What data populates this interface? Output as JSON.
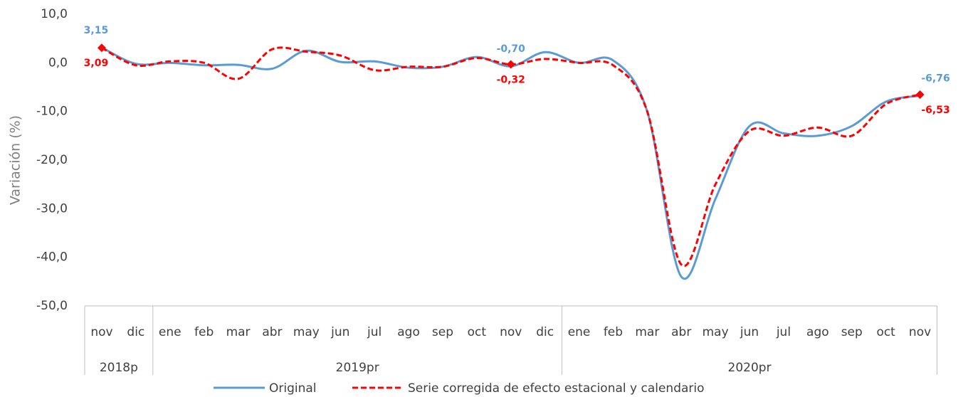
{
  "chart_data": {
    "type": "line",
    "y_label": "Variación (%)",
    "categories": [
      "nov",
      "dic",
      "ene",
      "feb",
      "mar",
      "abr",
      "may",
      "jun",
      "jul",
      "ago",
      "sep",
      "oct",
      "nov",
      "dic",
      "ene",
      "feb",
      "mar",
      "abr",
      "may",
      "jun",
      "jul",
      "ago",
      "sep",
      "oct",
      "nov"
    ],
    "groups": [
      {
        "name": "2018p",
        "count": 2
      },
      {
        "name": "2019pr",
        "count": 12
      },
      {
        "name": "2020pr",
        "count": 11
      }
    ],
    "series": [
      {
        "name": "Original",
        "color": "#5b9bd5",
        "dash": false,
        "values": [
          3.15,
          -0.2,
          0.0,
          -0.5,
          -0.4,
          -1.2,
          2.5,
          0.2,
          0.3,
          -1.0,
          -0.8,
          1.2,
          -0.7,
          2.2,
          0.0,
          0.5,
          -10,
          -44,
          -28,
          -13,
          -14.5,
          -15,
          -13,
          -8,
          -6.76
        ],
        "value_labels": [
          "3,15",
          null,
          null,
          null,
          null,
          null,
          null,
          null,
          null,
          null,
          null,
          null,
          "-0,70",
          null,
          null,
          null,
          null,
          null,
          null,
          null,
          null,
          null,
          null,
          null,
          "-6,76"
        ]
      },
      {
        "name": "Serie corregida de efecto estacional y calendario",
        "color": "#ff0000",
        "dash": true,
        "values": [
          3.09,
          -0.5,
          0.3,
          0.0,
          -3.3,
          2.8,
          2.3,
          1.5,
          -1.5,
          -0.8,
          -0.8,
          1.0,
          -0.32,
          0.8,
          0.0,
          -0.5,
          -10,
          -41.5,
          -25,
          -14,
          -15,
          -13.3,
          -15,
          -8.5,
          -6.53
        ],
        "value_labels": [
          "3,09",
          null,
          null,
          null,
          null,
          null,
          null,
          null,
          null,
          null,
          null,
          null,
          "-0,32",
          null,
          null,
          null,
          null,
          null,
          null,
          null,
          null,
          null,
          null,
          null,
          "-6,53"
        ]
      }
    ],
    "ylim": [
      -50,
      10
    ],
    "yticks": [
      {
        "value": -50,
        "label": "-50,0"
      },
      {
        "value": -40,
        "label": "-40,0"
      },
      {
        "value": -30,
        "label": "-30,0"
      },
      {
        "value": -20,
        "label": "-20,0"
      },
      {
        "value": -10,
        "label": "-10,0"
      },
      {
        "value": 0,
        "label": "0,0"
      },
      {
        "value": 10,
        "label": "10,0"
      }
    ],
    "grid": false
  }
}
